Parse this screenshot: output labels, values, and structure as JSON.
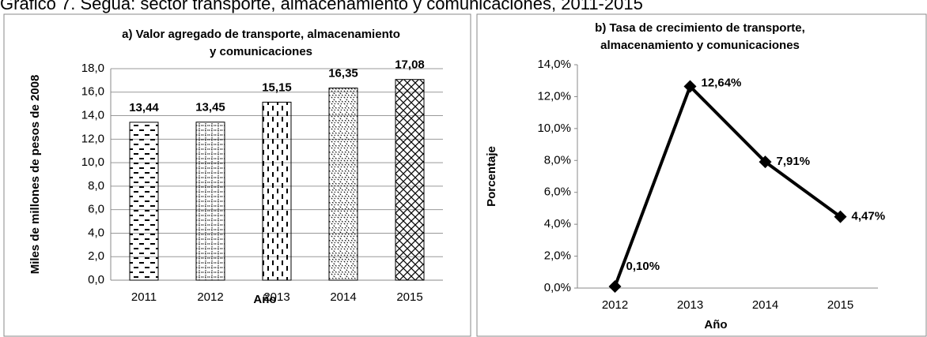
{
  "caption": "Gráfico 7. Seguá: sector transporte, almacenamiento y comunicaciones, 2011-2015",
  "chart_data": [
    {
      "type": "bar",
      "title": [
        "a) Valor agregado de transporte, almacenamiento",
        "y comunicaciones"
      ],
      "ylabel": "Miles de millones de pesos de 2008",
      "xlabel": "Año",
      "categories": [
        "2011",
        "2012",
        "2013",
        "2014",
        "2015"
      ],
      "values": [
        13.44,
        13.45,
        15.15,
        16.35,
        17.08
      ],
      "value_labels": [
        "13,44",
        "13,45",
        "15,15",
        "16,35",
        "17,08"
      ],
      "color": "#000000",
      "ylim": [
        0,
        18
      ],
      "yticks": [
        {
          "value": 0,
          "label": "0,0"
        },
        {
          "value": 2,
          "label": "2,0"
        },
        {
          "value": 4,
          "label": "4,0"
        },
        {
          "value": 6,
          "label": "6,0"
        },
        {
          "value": 8,
          "label": "8,0"
        },
        {
          "value": 10,
          "label": "10,0"
        },
        {
          "value": 12,
          "label": "12,0"
        },
        {
          "value": 14,
          "label": "14,0"
        },
        {
          "value": 16,
          "label": "16,0"
        },
        {
          "value": 18,
          "label": "18,0"
        }
      ],
      "grid": true
    },
    {
      "type": "line",
      "title": [
        "b) Tasa de crecimiento de transporte,",
        "almacenamiento y comunicaciones"
      ],
      "ylabel": "Porcentaje",
      "xlabel": "Año",
      "categories": [
        "2012",
        "2013",
        "2014",
        "2015"
      ],
      "values": [
        0.1,
        12.64,
        7.91,
        4.47
      ],
      "value_labels": [
        "0,10%",
        "12,64%",
        "7,91%",
        "4,47%"
      ],
      "color": "#000000",
      "ylim": [
        0,
        14
      ],
      "yticks": [
        {
          "value": 0,
          "label": "0,0%"
        },
        {
          "value": 2,
          "label": "2,0%"
        },
        {
          "value": 4,
          "label": "4,0%"
        },
        {
          "value": 6,
          "label": "6,0%"
        },
        {
          "value": 8,
          "label": "8,0%"
        },
        {
          "value": 10,
          "label": "10,0%"
        },
        {
          "value": 12,
          "label": "12,0%"
        },
        {
          "value": 14,
          "label": "14,0%"
        }
      ],
      "grid": false
    }
  ]
}
